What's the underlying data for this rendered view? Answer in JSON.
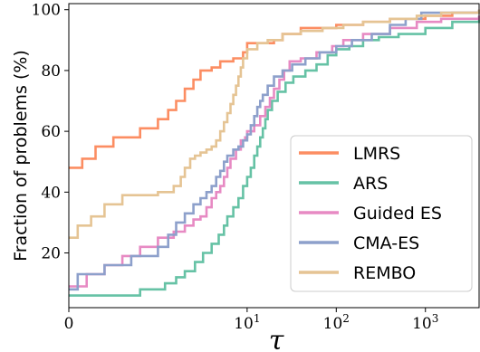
{
  "chart_data": {
    "type": "line",
    "title": "",
    "xlabel": "τ",
    "ylabel": "Fraction of problems (%)",
    "xscale": "symlog",
    "xlim": [
      0,
      4000
    ],
    "ylim": [
      2,
      102
    ],
    "grid": false,
    "legend_position": "lower-right",
    "x_ticks": [
      {
        "value": 0,
        "label": "0"
      },
      {
        "value": 10,
        "base": "10",
        "exp": "1"
      },
      {
        "value": 100,
        "base": "10",
        "exp": "2"
      },
      {
        "value": 1000,
        "base": "10",
        "exp": "3"
      }
    ],
    "y_ticks": [
      {
        "value": 20,
        "label": "20"
      },
      {
        "value": 40,
        "label": "40"
      },
      {
        "value": 60,
        "label": "60"
      },
      {
        "value": 80,
        "label": "80"
      },
      {
        "value": 100,
        "label": "100"
      }
    ],
    "series": [
      {
        "name": "LMRS",
        "color": "#fc8d62",
        "points": [
          [
            0,
            48
          ],
          [
            0.15,
            51
          ],
          [
            0.3,
            55
          ],
          [
            0.5,
            58
          ],
          [
            0.8,
            61
          ],
          [
            1.0,
            64
          ],
          [
            1.3,
            67
          ],
          [
            1.6,
            70
          ],
          [
            2.0,
            74
          ],
          [
            2.5,
            77
          ],
          [
            3.0,
            80
          ],
          [
            4.0,
            81
          ],
          [
            5.0,
            83
          ],
          [
            7.0,
            84
          ],
          [
            9.0,
            86
          ],
          [
            10,
            89
          ],
          [
            15,
            89
          ],
          [
            20,
            90
          ],
          [
            25,
            92
          ],
          [
            40,
            94
          ],
          [
            60,
            94
          ],
          [
            100,
            95
          ],
          [
            200,
            96
          ],
          [
            400,
            97
          ],
          [
            800,
            97
          ],
          [
            1000,
            98
          ],
          [
            2000,
            99
          ],
          [
            4000,
            100
          ]
        ]
      },
      {
        "name": "ARS",
        "color": "#66c2a5",
        "points": [
          [
            0,
            6
          ],
          [
            0.5,
            6
          ],
          [
            0.8,
            8
          ],
          [
            1.2,
            10
          ],
          [
            1.6,
            12
          ],
          [
            2.0,
            14
          ],
          [
            2.6,
            17
          ],
          [
            3.2,
            20
          ],
          [
            4.0,
            23
          ],
          [
            4.8,
            26
          ],
          [
            5.5,
            29
          ],
          [
            6.0,
            32
          ],
          [
            7.0,
            35
          ],
          [
            8.0,
            38
          ],
          [
            9.0,
            42
          ],
          [
            10,
            45
          ],
          [
            11,
            48
          ],
          [
            12,
            52
          ],
          [
            13,
            55
          ],
          [
            14,
            58
          ],
          [
            15,
            61
          ],
          [
            16,
            64
          ],
          [
            17,
            67
          ],
          [
            19,
            70
          ],
          [
            22,
            73
          ],
          [
            27,
            76
          ],
          [
            33,
            78
          ],
          [
            45,
            80
          ],
          [
            60,
            82
          ],
          [
            80,
            85
          ],
          [
            100,
            87
          ],
          [
            140,
            88
          ],
          [
            200,
            90
          ],
          [
            300,
            91
          ],
          [
            500,
            92
          ],
          [
            1000,
            94
          ],
          [
            2000,
            96
          ],
          [
            4000,
            98
          ]
        ]
      },
      {
        "name": "Guided ES",
        "color": "#e78ac3",
        "points": [
          [
            0,
            9
          ],
          [
            0.2,
            13
          ],
          [
            0.4,
            16
          ],
          [
            0.6,
            19
          ],
          [
            0.8,
            22
          ],
          [
            1.0,
            25
          ],
          [
            1.5,
            27
          ],
          [
            2.0,
            29
          ],
          [
            2.5,
            31
          ],
          [
            3.0,
            32
          ],
          [
            3.5,
            35
          ],
          [
            4.0,
            38
          ],
          [
            4.5,
            40
          ],
          [
            5.0,
            42
          ],
          [
            5.5,
            45
          ],
          [
            6.0,
            48
          ],
          [
            6.5,
            51
          ],
          [
            7.5,
            54
          ],
          [
            8.5,
            57
          ],
          [
            9.5,
            58
          ],
          [
            10,
            60
          ],
          [
            12,
            62
          ],
          [
            14,
            65
          ],
          [
            16,
            68
          ],
          [
            18,
            71
          ],
          [
            20,
            74
          ],
          [
            23,
            77
          ],
          [
            26,
            80
          ],
          [
            30,
            83
          ],
          [
            40,
            84
          ],
          [
            60,
            86
          ],
          [
            90,
            88
          ],
          [
            120,
            90
          ],
          [
            200,
            92
          ],
          [
            400,
            94
          ],
          [
            800,
            96
          ],
          [
            1500,
            97
          ],
          [
            4000,
            98
          ]
        ]
      },
      {
        "name": "CMA-ES",
        "color": "#8da0cb",
        "points": [
          [
            0,
            8
          ],
          [
            0.1,
            13
          ],
          [
            0.4,
            16
          ],
          [
            0.7,
            19
          ],
          [
            1.0,
            22
          ],
          [
            1.3,
            26
          ],
          [
            1.6,
            30
          ],
          [
            2.0,
            33
          ],
          [
            2.5,
            36
          ],
          [
            3.0,
            38
          ],
          [
            3.5,
            40
          ],
          [
            4.0,
            42
          ],
          [
            4.5,
            45
          ],
          [
            5.0,
            47
          ],
          [
            5.5,
            50
          ],
          [
            6.0,
            52
          ],
          [
            7.0,
            54
          ],
          [
            8.0,
            55
          ],
          [
            9.0,
            57
          ],
          [
            10,
            59
          ],
          [
            11,
            62
          ],
          [
            12,
            65
          ],
          [
            13,
            68
          ],
          [
            14,
            70
          ],
          [
            15,
            72
          ],
          [
            17,
            75
          ],
          [
            20,
            78
          ],
          [
            25,
            80
          ],
          [
            32,
            82
          ],
          [
            45,
            84
          ],
          [
            65,
            86
          ],
          [
            100,
            88
          ],
          [
            150,
            90
          ],
          [
            250,
            92
          ],
          [
            400,
            95
          ],
          [
            600,
            97
          ],
          [
            900,
            99
          ],
          [
            1500,
            99
          ],
          [
            4000,
            100
          ]
        ]
      },
      {
        "name": "REMBO",
        "color": "#e5c494",
        "points": [
          [
            0,
            25
          ],
          [
            0.1,
            29
          ],
          [
            0.25,
            32
          ],
          [
            0.4,
            36
          ],
          [
            0.6,
            39
          ],
          [
            1.0,
            40
          ],
          [
            1.5,
            42
          ],
          [
            1.8,
            45
          ],
          [
            2.0,
            48
          ],
          [
            2.3,
            51
          ],
          [
            2.6,
            52
          ],
          [
            3.0,
            53
          ],
          [
            3.5,
            54
          ],
          [
            4.0,
            55
          ],
          [
            4.5,
            57
          ],
          [
            5.0,
            60
          ],
          [
            5.5,
            63
          ],
          [
            6.0,
            66
          ],
          [
            6.5,
            69
          ],
          [
            7.0,
            72
          ],
          [
            7.5,
            75
          ],
          [
            8.0,
            78
          ],
          [
            8.5,
            81
          ],
          [
            9.0,
            84
          ],
          [
            10,
            87
          ],
          [
            13,
            89
          ],
          [
            17,
            90
          ],
          [
            25,
            92
          ],
          [
            40,
            93
          ],
          [
            70,
            94
          ],
          [
            120,
            95
          ],
          [
            200,
            96
          ],
          [
            400,
            97
          ],
          [
            800,
            98
          ],
          [
            1500,
            99
          ],
          [
            4000,
            100
          ]
        ]
      }
    ]
  }
}
